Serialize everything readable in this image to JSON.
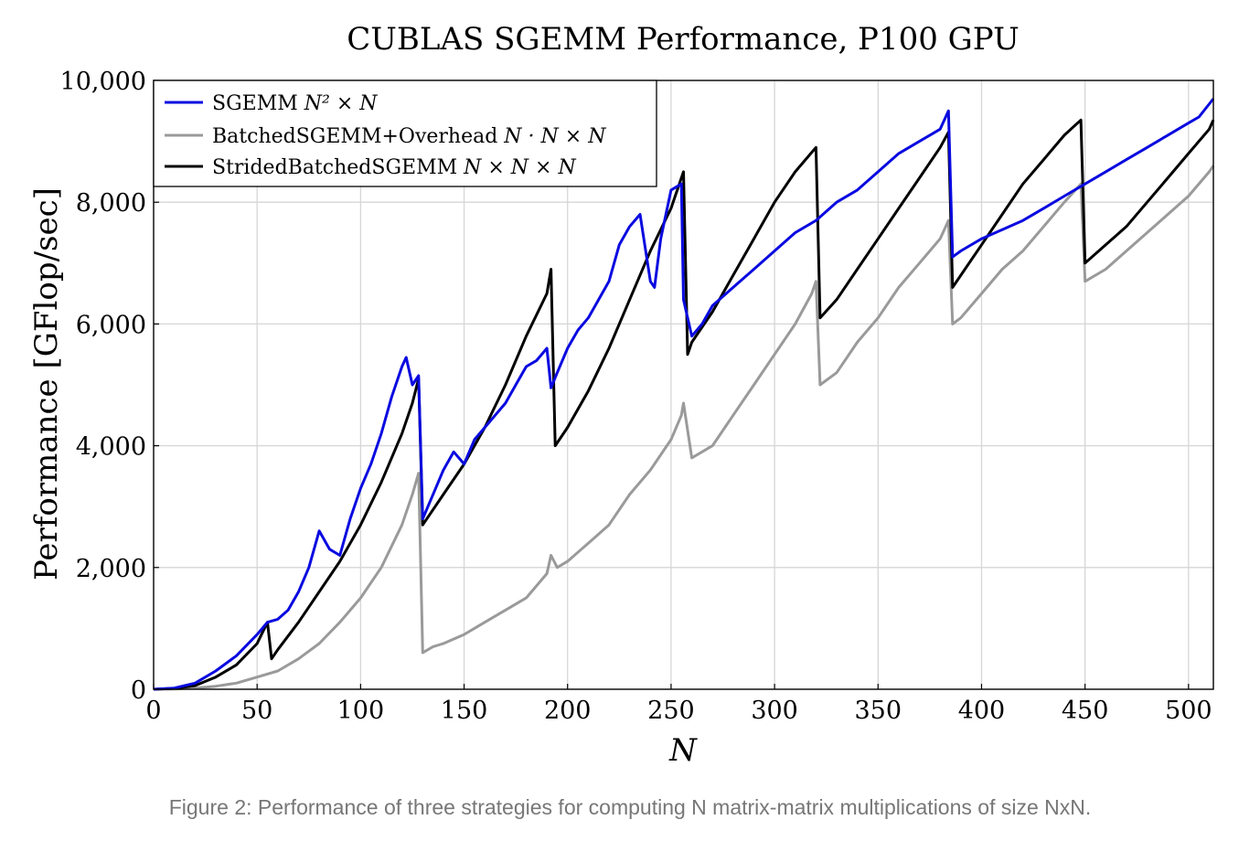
{
  "caption": "Figure 2: Performance of three strategies for computing N matrix-matrix multiplications of size NxN.",
  "chart_data": {
    "type": "line",
    "title": "CUBLAS SGEMM Performance, P100 GPU",
    "xlabel": "N",
    "ylabel": "Performance [GFlop/sec]",
    "xlim": [
      0,
      512
    ],
    "ylim": [
      0,
      10000
    ],
    "xticks": [
      0,
      50,
      100,
      150,
      200,
      250,
      300,
      350,
      400,
      450,
      500
    ],
    "yticks": [
      0,
      2000,
      4000,
      6000,
      8000,
      10000
    ],
    "xtick_labels": [
      "0",
      "50",
      "100",
      "150",
      "200",
      "250",
      "300",
      "350",
      "400",
      "450",
      "500"
    ],
    "ytick_labels": [
      "0",
      "2,000",
      "4,000",
      "6,000",
      "8,000",
      "10,000"
    ],
    "grid": true,
    "legend_position": "top-left",
    "series": [
      {
        "name": "SGEMM N² × N",
        "legend_plain": "SGEMM ",
        "legend_math": "N² × N",
        "color": "#0a0ae0",
        "x": [
          0,
          10,
          20,
          30,
          40,
          50,
          55,
          60,
          65,
          70,
          75,
          80,
          85,
          90,
          95,
          100,
          105,
          110,
          115,
          120,
          122,
          125,
          128,
          130,
          135,
          140,
          145,
          150,
          155,
          160,
          165,
          170,
          175,
          180,
          185,
          190,
          192,
          195,
          200,
          205,
          210,
          215,
          220,
          225,
          230,
          235,
          240,
          242,
          245,
          250,
          255,
          256,
          260,
          265,
          270,
          280,
          290,
          300,
          310,
          320,
          330,
          340,
          350,
          360,
          370,
          380,
          384,
          386,
          390,
          400,
          410,
          420,
          430,
          440,
          450,
          460,
          470,
          480,
          490,
          500,
          505,
          512
        ],
        "y": [
          0,
          20,
          100,
          300,
          550,
          900,
          1100,
          1150,
          1300,
          1600,
          2000,
          2600,
          2300,
          2200,
          2800,
          3300,
          3700,
          4200,
          4800,
          5300,
          5450,
          5000,
          5150,
          2800,
          3200,
          3600,
          3900,
          3700,
          4100,
          4300,
          4500,
          4700,
          5000,
          5300,
          5400,
          5600,
          4950,
          5200,
          5600,
          5900,
          6100,
          6400,
          6700,
          7300,
          7600,
          7800,
          6700,
          6600,
          7400,
          8200,
          8300,
          6400,
          5800,
          6000,
          6300,
          6600,
          6900,
          7200,
          7500,
          7700,
          8000,
          8200,
          8500,
          8800,
          9000,
          9200,
          9500,
          7100,
          7200,
          7400,
          7550,
          7700,
          7900,
          8100,
          8300,
          8500,
          8700,
          8900,
          9100,
          9300,
          9400,
          9700
        ]
      },
      {
        "name": "BatchedSGEMM+Overhead N · N × N",
        "legend_plain": "BatchedSGEMM+Overhead ",
        "legend_math": "N · N × N",
        "color": "#9a9a9a",
        "x": [
          0,
          10,
          20,
          30,
          40,
          50,
          60,
          70,
          80,
          90,
          100,
          110,
          120,
          125,
          128,
          130,
          135,
          140,
          150,
          160,
          170,
          180,
          190,
          192,
          195,
          200,
          210,
          220,
          230,
          240,
          250,
          255,
          256,
          260,
          270,
          280,
          290,
          300,
          310,
          318,
          320,
          322,
          330,
          340,
          350,
          360,
          370,
          380,
          384,
          386,
          390,
          400,
          410,
          420,
          430,
          440,
          448,
          450,
          460,
          470,
          480,
          490,
          500,
          510,
          512
        ],
        "y": [
          0,
          5,
          20,
          50,
          100,
          200,
          300,
          500,
          750,
          1100,
          1500,
          2000,
          2700,
          3200,
          3550,
          600,
          700,
          750,
          900,
          1100,
          1300,
          1500,
          1900,
          2200,
          2000,
          2100,
          2400,
          2700,
          3200,
          3600,
          4100,
          4500,
          4700,
          3800,
          4000,
          4500,
          5000,
          5500,
          6000,
          6500,
          6700,
          5000,
          5200,
          5700,
          6100,
          6600,
          7000,
          7400,
          7700,
          6000,
          6100,
          6500,
          6900,
          7200,
          7600,
          8000,
          8300,
          6700,
          6900,
          7200,
          7500,
          7800,
          8100,
          8500,
          8600
        ]
      },
      {
        "name": "StridedBatchedSGEMM N × N × N",
        "legend_plain": "StridedBatchedSGEMM ",
        "legend_math": "N × N × N",
        "color": "#000000",
        "x": [
          0,
          10,
          20,
          30,
          40,
          50,
          55,
          57,
          60,
          70,
          80,
          90,
          100,
          110,
          120,
          125,
          128,
          130,
          140,
          150,
          160,
          170,
          180,
          190,
          192,
          194,
          200,
          210,
          220,
          230,
          240,
          250,
          256,
          258,
          260,
          270,
          280,
          290,
          300,
          310,
          320,
          322,
          330,
          340,
          350,
          360,
          370,
          380,
          384,
          386,
          390,
          400,
          410,
          420,
          430,
          440,
          448,
          450,
          460,
          470,
          480,
          490,
          500,
          510,
          512
        ],
        "y": [
          0,
          15,
          60,
          200,
          400,
          750,
          1100,
          500,
          650,
          1100,
          1600,
          2100,
          2700,
          3400,
          4200,
          4700,
          5100,
          2700,
          3200,
          3700,
          4300,
          5000,
          5800,
          6500,
          6900,
          4000,
          4300,
          4900,
          5600,
          6400,
          7200,
          7900,
          8500,
          5500,
          5700,
          6200,
          6800,
          7400,
          8000,
          8500,
          8900,
          6100,
          6400,
          6900,
          7400,
          7900,
          8400,
          8900,
          9150,
          6600,
          6800,
          7300,
          7800,
          8300,
          8700,
          9100,
          9350,
          7000,
          7300,
          7600,
          8000,
          8400,
          8800,
          9200,
          9350
        ]
      }
    ]
  }
}
